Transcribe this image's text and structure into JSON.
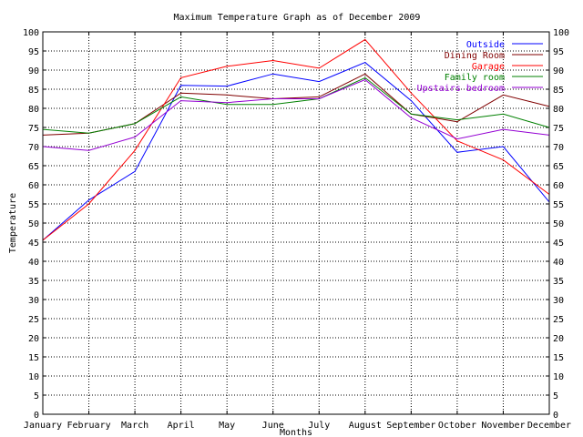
{
  "chart_data": {
    "type": "line",
    "title": "Maximum Temperature Graph as of December 2009",
    "xlabel": "Months",
    "ylabel": "Temperature",
    "categories": [
      "January",
      "February",
      "March",
      "April",
      "May",
      "June",
      "July",
      "August",
      "September",
      "October",
      "November",
      "December"
    ],
    "ylim": [
      0,
      100
    ],
    "yticks": [
      0,
      5,
      10,
      15,
      20,
      25,
      30,
      35,
      40,
      45,
      50,
      55,
      60,
      65,
      70,
      75,
      80,
      85,
      90,
      95,
      100
    ],
    "grid": true,
    "legend_position": "top-right",
    "series": [
      {
        "name": "Outside",
        "color": "#0000ff",
        "values": [
          45.5,
          56,
          63.5,
          86,
          85.8,
          89,
          87,
          92,
          82,
          68.5,
          70,
          55.5
        ]
      },
      {
        "name": "Dining Room",
        "color": "#800000",
        "values": [
          73,
          73.5,
          76,
          84,
          83.5,
          82.5,
          83,
          89,
          78.5,
          76.5,
          83.5,
          80.5
        ]
      },
      {
        "name": "Garage",
        "color": "#ff0000",
        "values": [
          45.5,
          55,
          69,
          88,
          91,
          92.5,
          90.5,
          98,
          84,
          71.5,
          66.5,
          57.5
        ]
      },
      {
        "name": "Family room",
        "color": "#008000",
        "values": [
          74.5,
          73.5,
          76,
          83,
          81,
          81,
          82.5,
          88,
          78.5,
          77,
          78.5,
          75
        ]
      },
      {
        "name": "Upstairs bedroom",
        "color": "#9400d3",
        "values": [
          70,
          69,
          72.5,
          82,
          81.5,
          82.5,
          82.5,
          87.5,
          77.5,
          72,
          74.5,
          73
        ]
      }
    ]
  }
}
